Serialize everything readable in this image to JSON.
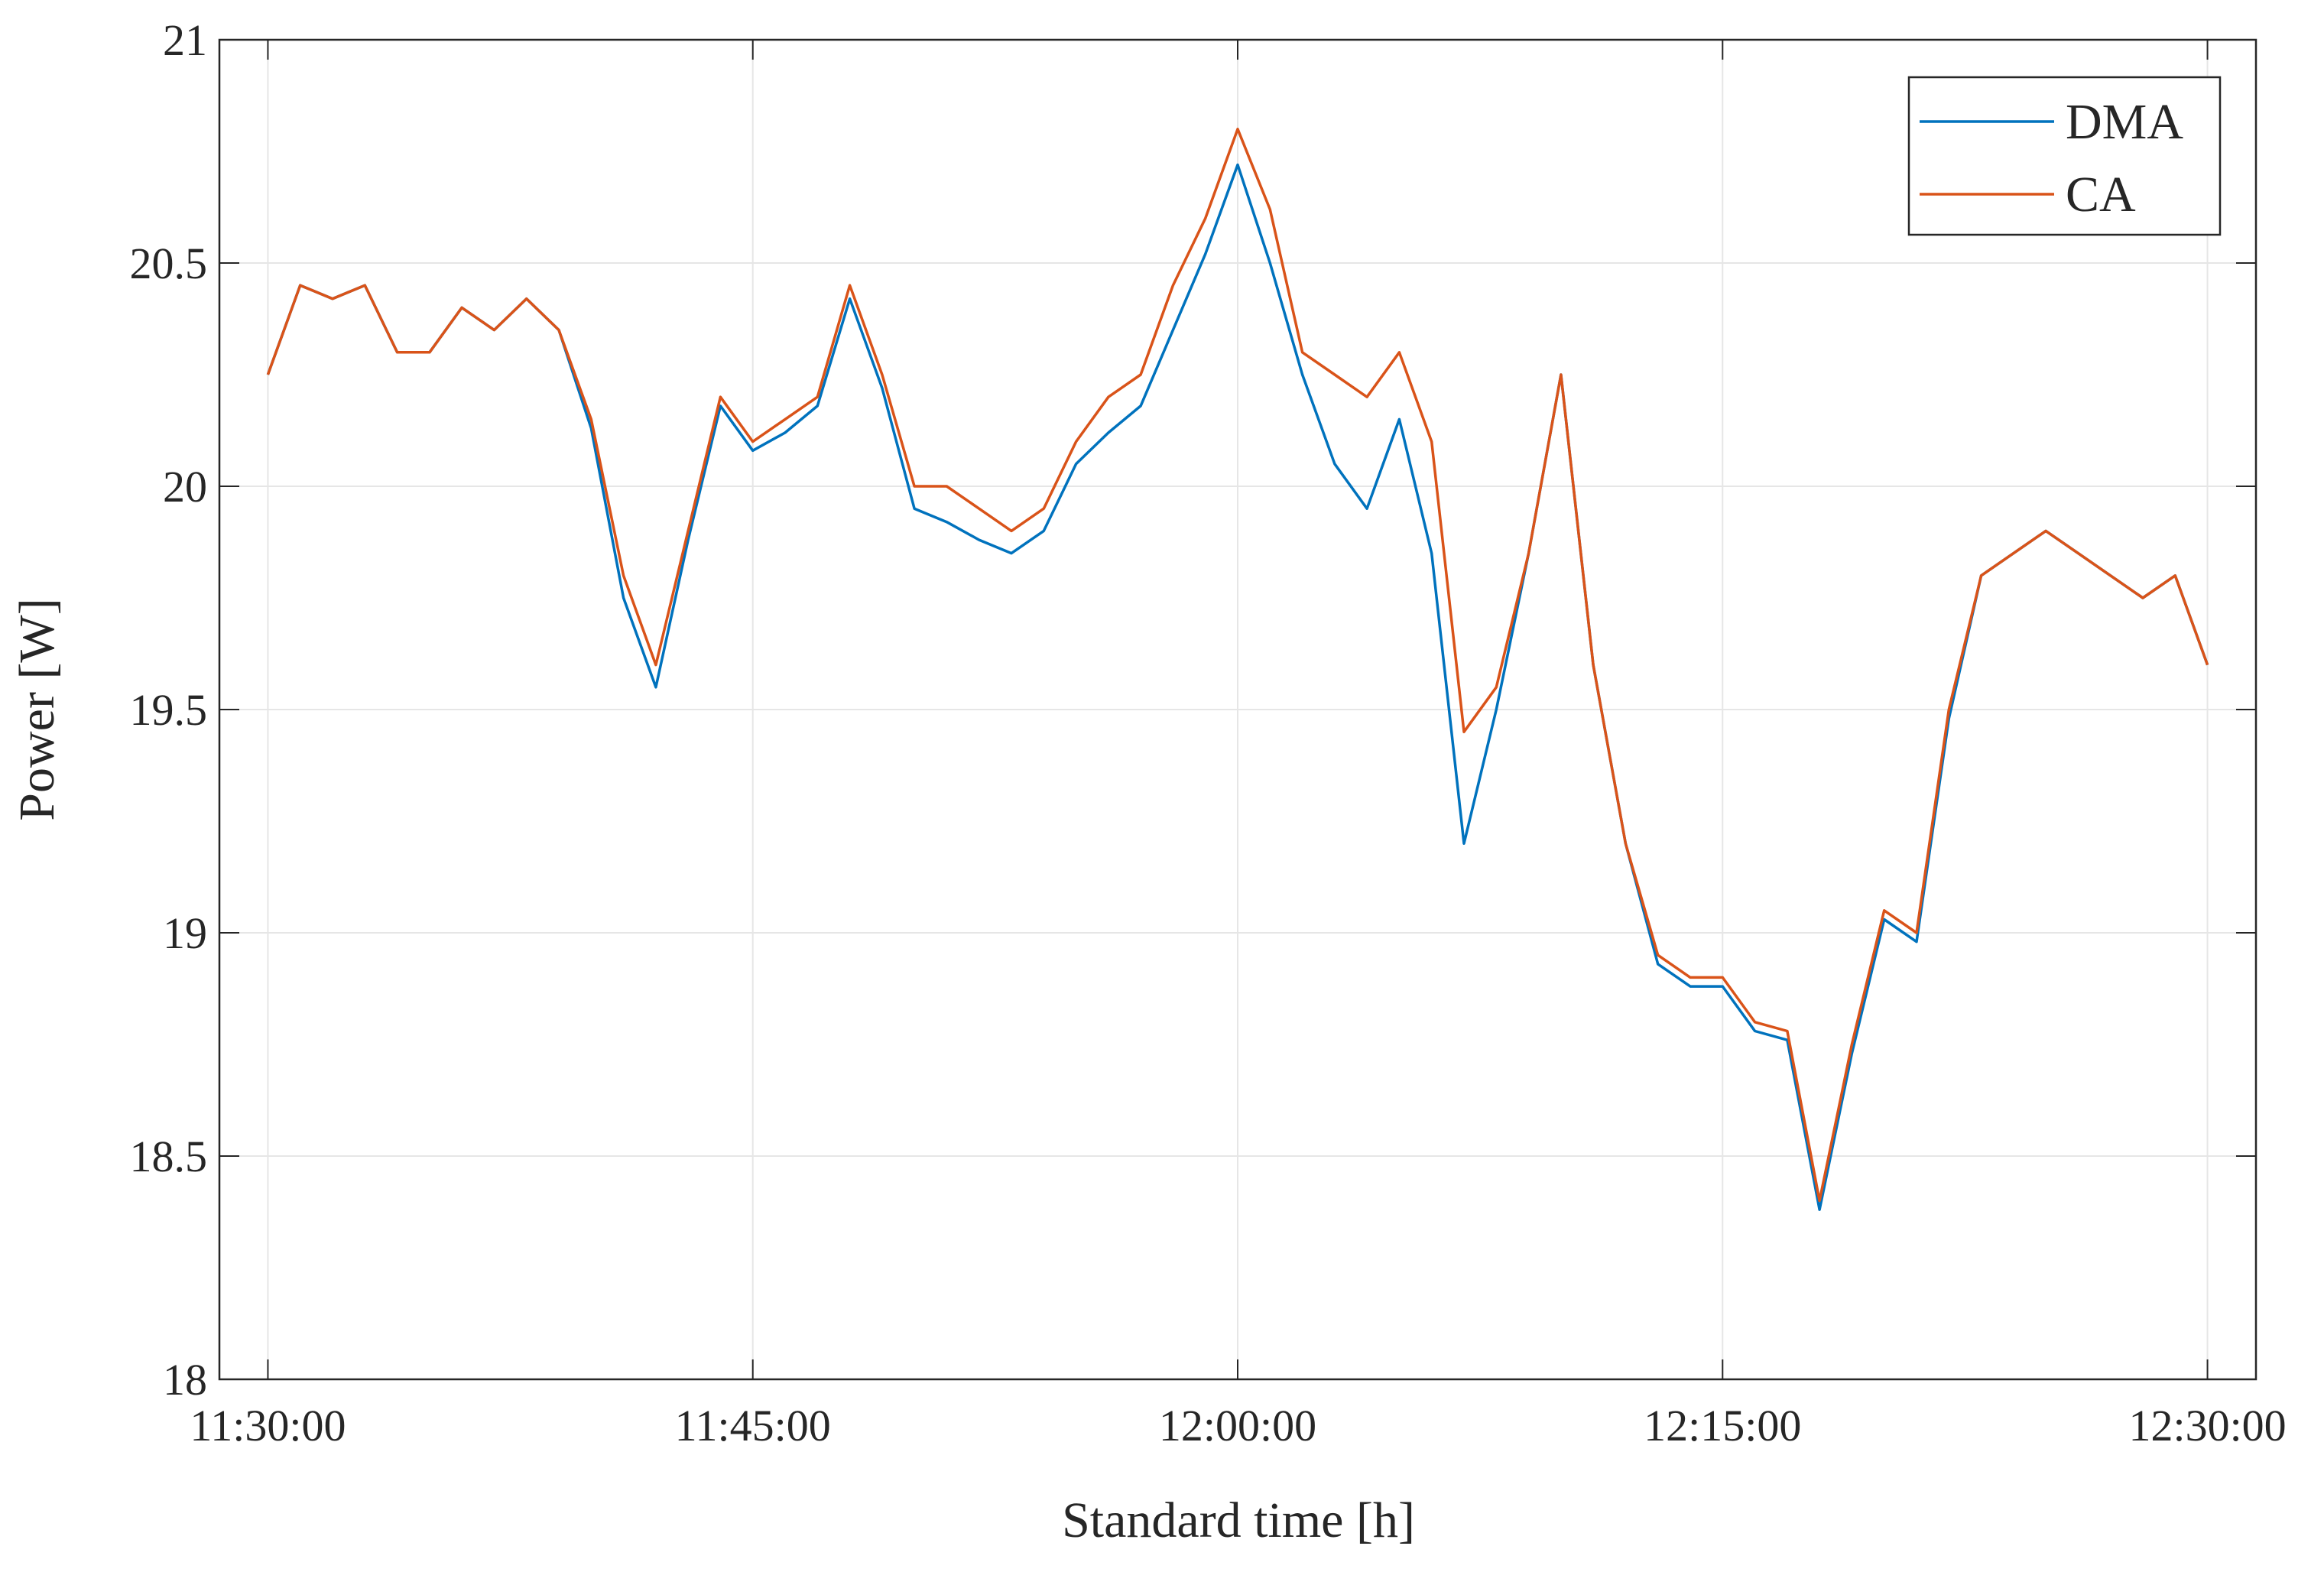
{
  "chart_data": {
    "type": "line",
    "x_label": "Standard time [h]",
    "y_label": "Power [W]",
    "x": [
      "11:30:00",
      "11:31:00",
      "11:32:00",
      "11:33:00",
      "11:34:00",
      "11:35:00",
      "11:36:00",
      "11:37:00",
      "11:38:00",
      "11:39:00",
      "11:40:00",
      "11:41:00",
      "11:42:00",
      "11:43:00",
      "11:44:00",
      "11:45:00",
      "11:46:00",
      "11:47:00",
      "11:48:00",
      "11:49:00",
      "11:50:00",
      "11:51:00",
      "11:52:00",
      "11:53:00",
      "11:54:00",
      "11:55:00",
      "11:56:00",
      "11:57:00",
      "11:58:00",
      "11:59:00",
      "12:00:00",
      "12:01:00",
      "12:02:00",
      "12:03:00",
      "12:04:00",
      "12:05:00",
      "12:06:00",
      "12:07:00",
      "12:08:00",
      "12:09:00",
      "12:10:00",
      "12:11:00",
      "12:12:00",
      "12:13:00",
      "12:14:00",
      "12:15:00",
      "12:16:00",
      "12:17:00",
      "12:18:00",
      "12:19:00",
      "12:20:00",
      "12:21:00",
      "12:22:00",
      "12:23:00",
      "12:24:00",
      "12:25:00",
      "12:26:00",
      "12:27:00",
      "12:28:00",
      "12:29:00",
      "12:30:00"
    ],
    "series": [
      {
        "name": "DMA",
        "color": "#0072bd",
        "values": [
          20.25,
          20.45,
          20.42,
          20.45,
          20.3,
          20.3,
          20.4,
          20.35,
          20.42,
          20.35,
          20.13,
          19.75,
          19.55,
          19.88,
          20.18,
          20.08,
          20.12,
          20.18,
          20.42,
          20.22,
          19.95,
          19.92,
          19.88,
          19.85,
          19.9,
          20.05,
          20.12,
          20.18,
          20.35,
          20.52,
          20.72,
          20.5,
          20.25,
          20.05,
          19.95,
          20.15,
          19.85,
          19.2,
          19.5,
          19.85,
          20.25,
          19.6,
          19.2,
          18.93,
          18.88,
          18.88,
          18.78,
          18.76,
          18.38,
          18.73,
          19.03,
          18.98,
          19.48,
          19.8,
          19.85,
          19.9,
          19.85,
          19.8,
          19.75,
          19.8,
          19.6
        ]
      },
      {
        "name": "CA",
        "color": "#d95319",
        "values": [
          20.25,
          20.45,
          20.42,
          20.45,
          20.3,
          20.3,
          20.4,
          20.35,
          20.42,
          20.35,
          20.15,
          19.8,
          19.6,
          19.9,
          20.2,
          20.1,
          20.15,
          20.2,
          20.45,
          20.25,
          20.0,
          20.0,
          19.95,
          19.9,
          19.95,
          20.1,
          20.2,
          20.25,
          20.45,
          20.6,
          20.8,
          20.62,
          20.3,
          20.25,
          20.2,
          20.3,
          20.1,
          19.45,
          19.55,
          19.85,
          20.25,
          19.6,
          19.2,
          18.95,
          18.9,
          18.9,
          18.8,
          18.78,
          18.4,
          18.75,
          19.05,
          19.0,
          19.5,
          19.8,
          19.85,
          19.9,
          19.85,
          19.8,
          19.75,
          19.8,
          19.6
        ]
      }
    ],
    "xlim": [
      "11:28:30",
      "12:31:30"
    ],
    "xticks": [
      "11:30:00",
      "11:45:00",
      "12:00:00",
      "12:15:00",
      "12:30:00"
    ],
    "ylim": [
      18,
      21
    ],
    "yticks": [
      18,
      18.5,
      19,
      19.5,
      20,
      20.5,
      21
    ],
    "grid": true,
    "legend": "upper right"
  }
}
